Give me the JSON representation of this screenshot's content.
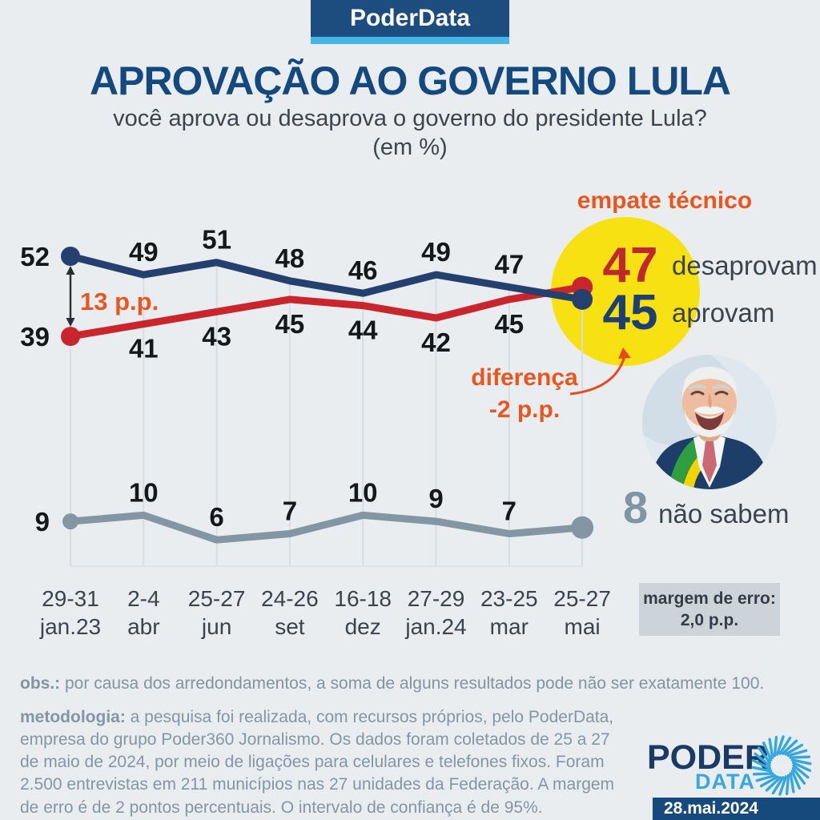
{
  "header": {
    "brand": "PoderData"
  },
  "title": "APROVAÇÃO AO GOVERNO LULA",
  "subtitle": "você aprova ou desaprova o governo do presidente Lula?",
  "unit_note": "(em %)",
  "chart_data": {
    "type": "line",
    "categories": [
      {
        "line1": "29-31",
        "line2": "jan.23"
      },
      {
        "line1": "2-4",
        "line2": "abr"
      },
      {
        "line1": "25-27",
        "line2": "jun"
      },
      {
        "line1": "24-26",
        "line2": "set"
      },
      {
        "line1": "16-18",
        "line2": "dez"
      },
      {
        "line1": "27-29",
        "line2": "jan.24"
      },
      {
        "line1": "23-25",
        "line2": "mar"
      },
      {
        "line1": "25-27",
        "line2": "mai"
      }
    ],
    "series": [
      {
        "name": "aprovam",
        "color": "#24406f",
        "label_side": "above",
        "values": [
          52,
          49,
          51,
          48,
          46,
          49,
          47,
          45
        ]
      },
      {
        "name": "desaprovam",
        "color": "#c9252d",
        "label_side": "below",
        "values": [
          39,
          41,
          43,
          45,
          44,
          42,
          45,
          47
        ]
      },
      {
        "name": "não sabem",
        "color": "#8296a4",
        "label_side": "above",
        "values": [
          9,
          10,
          6,
          7,
          10,
          9,
          7,
          8
        ]
      }
    ],
    "grid": "vertical-ticks",
    "legend_position": "inline-right",
    "ylim": [
      0,
      60
    ]
  },
  "annotations": {
    "empate": "empate técnico",
    "gap_label": "13 p.p.",
    "diff_line1": "diferença",
    "diff_line2": "-2 p.p.",
    "final_desaprovam_value": "47",
    "final_desaprovam_label": "desaprovam",
    "final_aprovam_value": "45",
    "final_aprovam_label": "aprovam",
    "final_nao_sabem_value": "8",
    "final_nao_sabem_label": "não sabem",
    "margem_line1": "margem de erro:",
    "margem_line2": "2,0 p.p."
  },
  "notes": {
    "obs_label": "obs.:",
    "obs_text": " por causa dos arredondamentos, a soma de alguns resultados pode não ser exatamente 100.",
    "met_label": "metodologia:",
    "met_text": " a pesquisa foi realizada, com recursos próprios, pelo PoderData, empresa do grupo Poder360 Jornalismo. Os dados foram coletados de 25 a 27 de maio de 2024, por meio de ligações para celulares e telefones fixos. Foram 2.500 entrevistas em 211 municípios nas 27 unidades da Federação. A margem de erro é de 2 pontos percentuais. O intervalo de confiança é de 95%."
  },
  "footer": {
    "logo_line1": "PODER",
    "logo_line2": "DATA",
    "date": "28.mai.2024"
  },
  "colors": {
    "aprovam": "#24406f",
    "desaprovam": "#c9252d",
    "nao_sabem": "#8296a4",
    "accent_orange": "#e8571f",
    "highlight_yellow": "#f8e112",
    "background": "#e9edf0"
  }
}
